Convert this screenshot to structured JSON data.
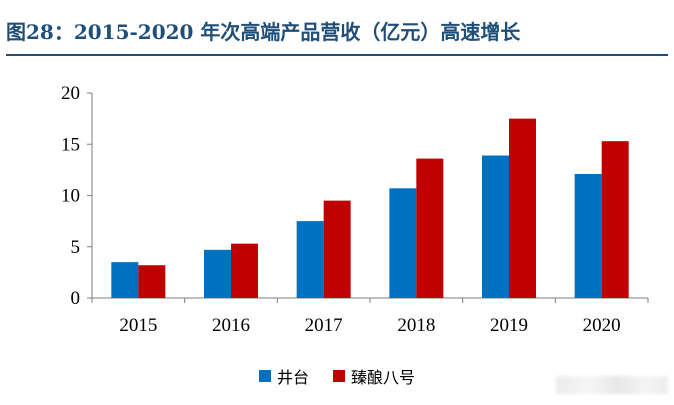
{
  "title": "图28：2015-2020 年次高端产品营收（亿元）高速增长",
  "colors": {
    "title": "#1f4e79",
    "series_1": "#0070c0",
    "series_2": "#c00000"
  },
  "chart_data": {
    "type": "bar",
    "title": "图28：2015-2020 年次高端产品营收（亿元）高速增长",
    "xlabel": "",
    "ylabel": "",
    "categories": [
      "2015",
      "2016",
      "2017",
      "2018",
      "2019",
      "2020"
    ],
    "series": [
      {
        "name": "井台",
        "color": "#0070c0",
        "values": [
          3.5,
          4.7,
          7.5,
          10.7,
          13.9,
          12.1
        ]
      },
      {
        "name": "臻酿八号",
        "color": "#c00000",
        "values": [
          3.2,
          5.3,
          9.5,
          13.6,
          17.5,
          15.3
        ]
      }
    ],
    "ylim": [
      0,
      20
    ],
    "yticks": [
      0,
      5,
      10,
      15,
      20
    ],
    "grid": false,
    "legend": "bottom"
  }
}
